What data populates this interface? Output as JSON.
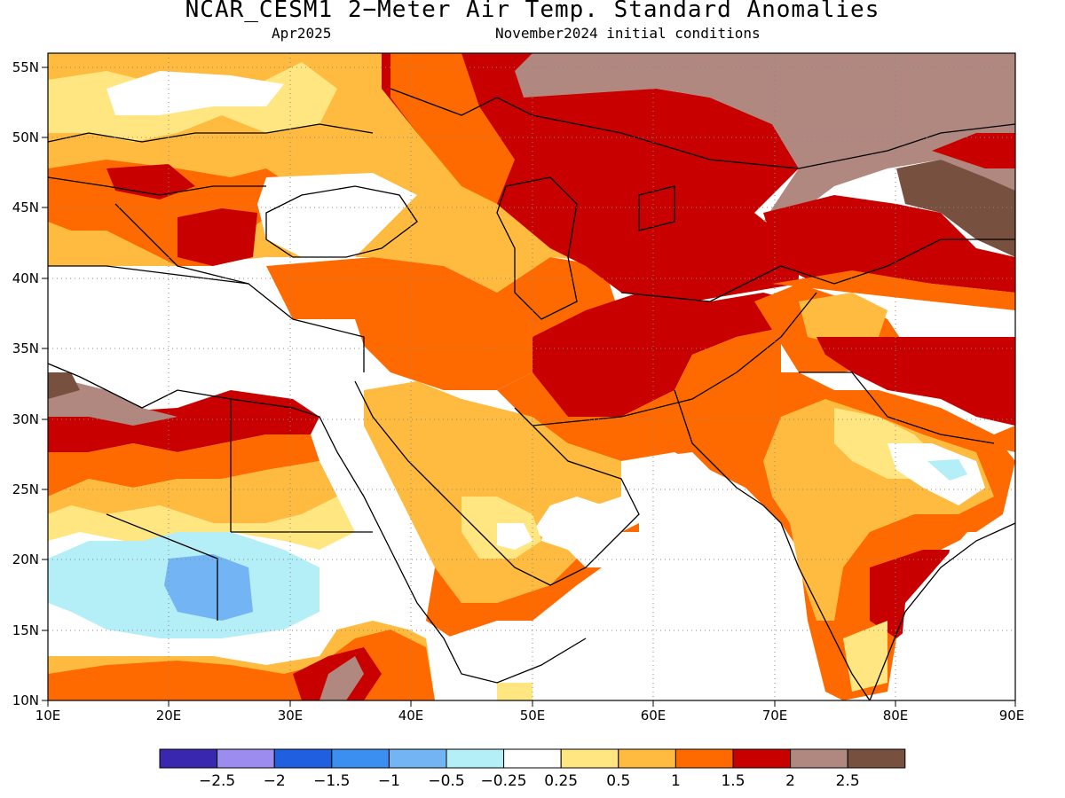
{
  "title": "NCAR_CESM1 2−Meter Air Temp. Standard Anomalies",
  "subtitle_left": "Apr2025",
  "subtitle_right": "November2024 initial conditions",
  "map": {
    "region": "Middle East / South-West Asia",
    "lon_range": [
      10,
      90
    ],
    "lat_range": [
      10,
      56
    ],
    "lon_ticks": [
      "10E",
      "20E",
      "30E",
      "40E",
      "50E",
      "60E",
      "70E",
      "80E",
      "90E"
    ],
    "lat_ticks": [
      "10N",
      "15N",
      "20N",
      "25N",
      "30N",
      "35N",
      "40N",
      "45N",
      "50N",
      "55N"
    ],
    "grid": "dotted"
  },
  "colorbar": {
    "colors": [
      "#3a27b0",
      "#9c8cf0",
      "#2060e0",
      "#3a8ff0",
      "#73b4f5",
      "#b4eef6",
      "#ffffff",
      "#ffe680",
      "#ffba40",
      "#ff6a00",
      "#c80000",
      "#b08880",
      "#785040"
    ],
    "labels": [
      "−2.5",
      "−2",
      "−1.5",
      "−1",
      "−0.5",
      "−0.25",
      "0.25",
      "0.5",
      "1",
      "1.5",
      "2",
      "2.5"
    ]
  }
}
